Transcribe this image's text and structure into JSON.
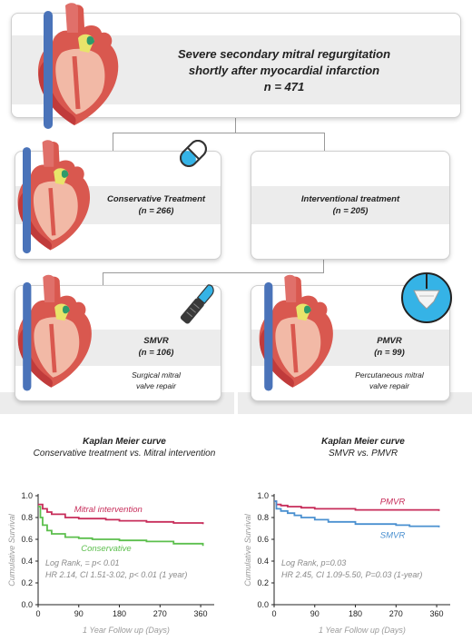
{
  "top": {
    "line1": "Severe secondary mitral regurgitation",
    "line2": "shortly after myocardial infarction",
    "n": "n = 471"
  },
  "conservative": {
    "label": "Conservative Treatment",
    "n": "(n = 266)"
  },
  "interventional": {
    "label": "Interventional treatment",
    "n": "(n = 205)"
  },
  "smvr": {
    "label": "SMVR",
    "n": "(n = 106)",
    "desc1": "Surgical mitral",
    "desc2": "valve repair"
  },
  "pmvr": {
    "label": "PMVR",
    "n": "(n = 99)",
    "desc1": "Percutaneous mitral",
    "desc2": "valve repair"
  },
  "chart_left_title": {
    "line1": "Kaplan Meier curve",
    "line2": "Conservative treatment vs. Mitral intervention"
  },
  "chart_right_title": {
    "line1": "Kaplan Meier curve",
    "line2": "SMVR vs. PMVR"
  },
  "colors": {
    "mitral": "#c72d5a",
    "conservative": "#5cbf4d",
    "pmvr": "#c72d5a",
    "smvr": "#4a90d0",
    "pill": "#35b3e6",
    "heart": "#d9584f"
  },
  "icons": [
    "heart-illustration",
    "pill-icon",
    "scalpel-icon",
    "valve-clip-icon"
  ],
  "chart_data": [
    {
      "type": "line",
      "ylabel": "Cumulative Survival",
      "xlabel": "1 Year Follow up (Days)",
      "xticks": [
        0,
        90,
        180,
        270,
        360
      ],
      "yticks": [
        0.0,
        0.2,
        0.4,
        0.6,
        0.8,
        1.0
      ],
      "xlim": [
        0,
        390
      ],
      "ylim": [
        0,
        1.0
      ],
      "series": [
        {
          "name": "Mitral intervention",
          "x": [
            0,
            10,
            20,
            30,
            60,
            90,
            150,
            180,
            240,
            300,
            365
          ],
          "y": [
            0.92,
            0.88,
            0.85,
            0.83,
            0.8,
            0.79,
            0.78,
            0.77,
            0.76,
            0.75,
            0.74
          ]
        },
        {
          "name": "Conservative",
          "x": [
            0,
            5,
            10,
            20,
            30,
            60,
            90,
            120,
            180,
            240,
            300,
            365
          ],
          "y": [
            0.9,
            0.8,
            0.73,
            0.68,
            0.65,
            0.62,
            0.61,
            0.6,
            0.59,
            0.58,
            0.56,
            0.54
          ]
        }
      ],
      "annotation": [
        "Log Rank, = p< 0.01",
        "HR 2.14, CI 1.51-3.02, p< 0.01 (1 year)"
      ]
    },
    {
      "type": "line",
      "ylabel": "Cumulative Survival",
      "xlabel": "1 Year Follow up (Days)",
      "xticks": [
        0,
        90,
        180,
        270,
        360
      ],
      "yticks": [
        0.0,
        0.2,
        0.4,
        0.6,
        0.8,
        1.0
      ],
      "xlim": [
        0,
        390
      ],
      "ylim": [
        0,
        1.0
      ],
      "series": [
        {
          "name": "PMVR",
          "x": [
            0,
            5,
            15,
            30,
            60,
            90,
            180,
            270,
            365
          ],
          "y": [
            0.95,
            0.92,
            0.91,
            0.9,
            0.89,
            0.88,
            0.87,
            0.87,
            0.86
          ]
        },
        {
          "name": "SMVR",
          "x": [
            0,
            5,
            15,
            30,
            45,
            60,
            90,
            120,
            180,
            270,
            300,
            365
          ],
          "y": [
            0.95,
            0.88,
            0.86,
            0.84,
            0.82,
            0.8,
            0.78,
            0.76,
            0.74,
            0.73,
            0.72,
            0.71
          ]
        }
      ],
      "annotation": [
        "Log Rank, p=0.03",
        "HR 2.45, CI 1.09-5.50, P=0.03 (1-year)"
      ]
    }
  ]
}
